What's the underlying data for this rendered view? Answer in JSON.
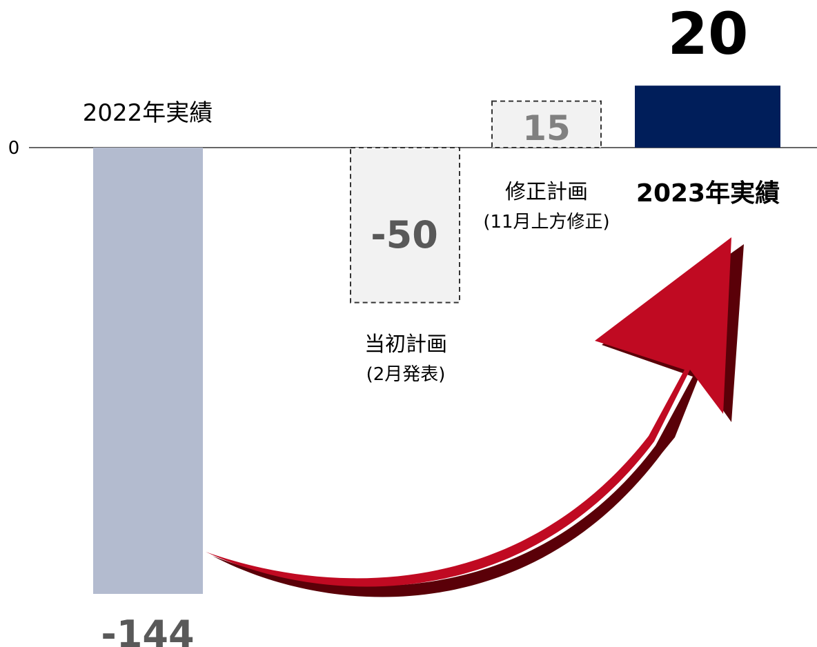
{
  "chart_data": {
    "type": "bar",
    "categories": [
      "2022年実績",
      "当初計画",
      "修正計画",
      "2023年実績"
    ],
    "category_sublabels": [
      "",
      "(2月発表)",
      "(11月上方修正)",
      ""
    ],
    "values": [
      -144,
      -50,
      15,
      20
    ],
    "value_labels": [
      "-144",
      "-50",
      "15",
      "20"
    ],
    "bar_styles": [
      "solid",
      "dashed",
      "dashed",
      "solid"
    ],
    "bar_colors": [
      "#b3bbcf",
      "#f2f2f2",
      "#f2f2f2",
      "#001e5a"
    ],
    "label_colors": [
      "#595959",
      "#595959",
      "#808080",
      "#000000"
    ],
    "arrow_color": "#c00a22",
    "arrow_shadow_color": "#5a0008",
    "axis": {
      "zero_tick_label": "0"
    },
    "ylim": [
      -144,
      20
    ],
    "title": "",
    "xlabel": "",
    "ylabel": ""
  }
}
